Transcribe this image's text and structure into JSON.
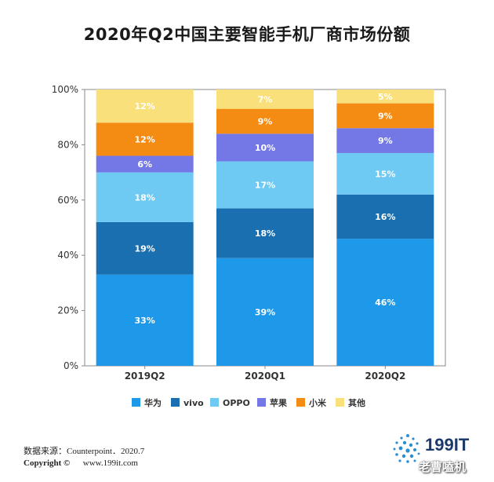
{
  "chart_data": {
    "type": "bar",
    "stacked": true,
    "title": "2020年Q2中国主要智能手机厂商市场份额",
    "categories": [
      "2019Q2",
      "2020Q1",
      "2020Q2"
    ],
    "ylim": [
      0,
      100
    ],
    "yticks": [
      "0%",
      "20%",
      "40%",
      "60%",
      "80%",
      "100%"
    ],
    "ytick_values": [
      0,
      20,
      40,
      60,
      80,
      100
    ],
    "legend_position": "bottom",
    "series": [
      {
        "name": "华为",
        "color": "#1e98e8",
        "values": [
          33,
          39,
          46
        ],
        "labels": [
          "33%",
          "39%",
          "46%"
        ]
      },
      {
        "name": "vivo",
        "color": "#1a6fb0",
        "values": [
          19,
          18,
          16
        ],
        "labels": [
          "19%",
          "18%",
          "16%"
        ]
      },
      {
        "name": "OPPO",
        "color": "#6ecaf3",
        "values": [
          18,
          17,
          15
        ],
        "labels": [
          "18%",
          "17%",
          "15%"
        ]
      },
      {
        "name": "苹果",
        "color": "#7478e6",
        "values": [
          6,
          10,
          9
        ],
        "labels": [
          "6%",
          "10%",
          "9%"
        ]
      },
      {
        "name": "小米",
        "color": "#f48c13",
        "values": [
          12,
          9,
          9
        ],
        "labels": [
          "12%",
          "9%",
          "9%"
        ]
      },
      {
        "name": "其他",
        "color": "#f9e07a",
        "values": [
          12,
          7,
          5
        ],
        "labels": [
          "12%",
          "7%",
          "5%"
        ]
      }
    ]
  },
  "footer": {
    "source": "数据来源：Counterpoint．2020.7",
    "copyright_label": "Copyright ©",
    "website": "www.199it.com"
  },
  "logo": {
    "text": "199IT"
  },
  "watermark": "老曹嗑机"
}
